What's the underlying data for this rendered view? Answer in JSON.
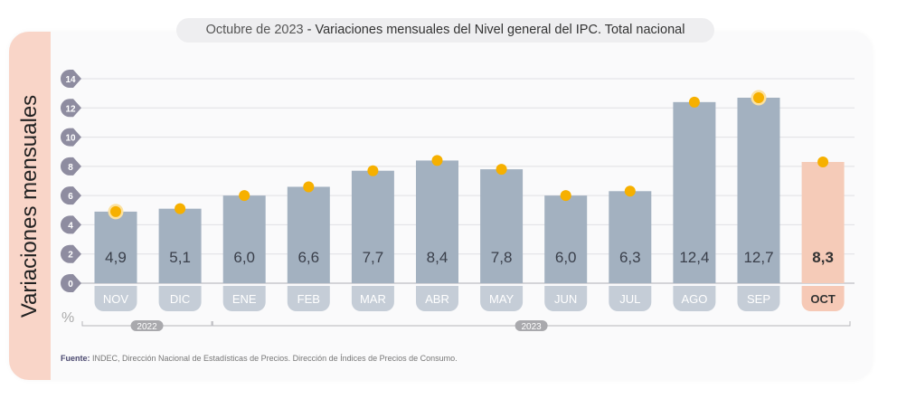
{
  "title": {
    "date": "Octubre de 2023",
    "separator": " - ",
    "text": "Variaciones mensuales del Nivel general del IPC. Total nacional"
  },
  "source": {
    "label": "Fuente:",
    "text": " INDEC, Dirección Nacional de Estadísticas de Precios. Dirección de Índices de Precios de Consumo."
  },
  "unit": "%",
  "colors": {
    "bar": "#a3b1c0",
    "highlight_bar": "#f5cbb8",
    "dot": "#f6b000",
    "tick_badge": "#8e8ca0",
    "band": "#f9d5c8"
  },
  "chart_data": {
    "type": "bar",
    "title": "Octubre de 2023 - Variaciones mensuales del Nivel general del IPC. Total nacional",
    "ylabel": "Variaciones mensuales",
    "xlabel": "",
    "ylim": [
      0,
      14
    ],
    "yticks": [
      0,
      2,
      4,
      6,
      8,
      10,
      12,
      14
    ],
    "grid": true,
    "categories": [
      "NOV",
      "DIC",
      "ENE",
      "FEB",
      "MAR",
      "ABR",
      "MAY",
      "JUN",
      "JUL",
      "AGO",
      "SEP",
      "OCT"
    ],
    "values": [
      4.9,
      5.1,
      6.0,
      6.6,
      7.7,
      8.4,
      7.8,
      6.0,
      6.3,
      12.4,
      12.7,
      8.3
    ],
    "labels": [
      "4,9",
      "5,1",
      "6,0",
      "6,6",
      "7,7",
      "8,4",
      "7,8",
      "6,0",
      "6,3",
      "12,4",
      "12,7",
      "8,3"
    ],
    "highlight": "OCT",
    "years": [
      {
        "label": "2022",
        "from": "NOV",
        "to": "DIC"
      },
      {
        "label": "2023",
        "from": "ENE",
        "to": "OCT"
      }
    ]
  }
}
